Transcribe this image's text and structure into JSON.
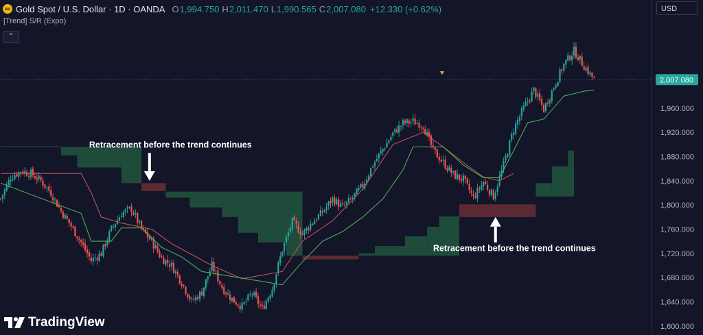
{
  "header": {
    "title": "Gold Spot / U.S. Dollar · 1D · OANDA",
    "o_key": "O",
    "o_val": "1,994.750",
    "h_key": "H",
    "h_val": "2,011.470",
    "l_key": "L",
    "l_val": "1,990.565",
    "c_key": "C",
    "c_val": "2,007.080",
    "change": "+12.330 (+0.62%)"
  },
  "indicator_label": "[Trend] S/R (Expo)",
  "currency": "USD",
  "logo_text": "TradingView",
  "colors": {
    "background": "#131529",
    "up": "#26a69a",
    "down": "#ef5350",
    "support_zone": "#1f4b3b",
    "resistance_zone": "#5c2a33",
    "trail_line": "#4caf50",
    "resist_line": "#c9505a",
    "price_tag": "#26a69a"
  },
  "chart_data": {
    "type": "candlestick",
    "price_axis": {
      "ylim": [
        1585,
        2098
      ],
      "ticks": [
        1600,
        1640,
        1680,
        1720,
        1760,
        1800,
        1840,
        1880,
        1920,
        1960
      ],
      "tick_labels": [
        "1,600.000",
        "1,640.000",
        "1,680.000",
        "1,720.000",
        "1,760.000",
        "1,800.000",
        "1,840.000",
        "1,880.000",
        "1,920.000",
        "1,960.000"
      ],
      "last_price": 2007.08,
      "last_price_label": "2,007.080"
    },
    "close_anchors": [
      [
        0,
        1810
      ],
      [
        5,
        1846
      ],
      [
        10,
        1856
      ],
      [
        15,
        1852
      ],
      [
        20,
        1840
      ],
      [
        25,
        1820
      ],
      [
        30,
        1790
      ],
      [
        35,
        1765
      ],
      [
        40,
        1738
      ],
      [
        45,
        1708
      ],
      [
        50,
        1720
      ],
      [
        55,
        1760
      ],
      [
        60,
        1786
      ],
      [
        65,
        1794
      ],
      [
        70,
        1760
      ],
      [
        75,
        1740
      ],
      [
        80,
        1712
      ],
      [
        85,
        1700
      ],
      [
        90,
        1672
      ],
      [
        95,
        1640
      ],
      [
        100,
        1656
      ],
      [
        105,
        1700
      ],
      [
        110,
        1664
      ],
      [
        115,
        1644
      ],
      [
        120,
        1632
      ],
      [
        125,
        1654
      ],
      [
        130,
        1628
      ],
      [
        135,
        1662
      ],
      [
        140,
        1726
      ],
      [
        145,
        1772
      ],
      [
        150,
        1752
      ],
      [
        155,
        1772
      ],
      [
        160,
        1788
      ],
      [
        165,
        1810
      ],
      [
        170,
        1796
      ],
      [
        175,
        1812
      ],
      [
        180,
        1832
      ],
      [
        185,
        1866
      ],
      [
        190,
        1892
      ],
      [
        195,
        1918
      ],
      [
        200,
        1935
      ],
      [
        205,
        1938
      ],
      [
        210,
        1932
      ],
      [
        215,
        1890
      ],
      [
        220,
        1870
      ],
      [
        225,
        1850
      ],
      [
        230,
        1842
      ],
      [
        235,
        1812
      ],
      [
        240,
        1838
      ],
      [
        245,
        1814
      ],
      [
        250,
        1866
      ],
      [
        255,
        1925
      ],
      [
        260,
        1960
      ],
      [
        265,
        1990
      ],
      [
        270,
        1958
      ],
      [
        275,
        1995
      ],
      [
        280,
        2032
      ],
      [
        285,
        2055
      ],
      [
        290,
        2030
      ],
      [
        295,
        2007
      ]
    ],
    "trail_line": [
      [
        0,
        1836
      ],
      [
        40,
        1786
      ],
      [
        45,
        1740
      ],
      [
        55,
        1740
      ],
      [
        60,
        1762
      ],
      [
        70,
        1762
      ],
      [
        75,
        1746
      ],
      [
        80,
        1730
      ],
      [
        90,
        1714
      ],
      [
        100,
        1690
      ],
      [
        140,
        1668
      ],
      [
        150,
        1706
      ],
      [
        160,
        1740
      ],
      [
        170,
        1756
      ],
      [
        180,
        1780
      ],
      [
        190,
        1810
      ],
      [
        200,
        1858
      ],
      [
        205,
        1896
      ],
      [
        220,
        1896
      ],
      [
        230,
        1866
      ],
      [
        240,
        1845
      ],
      [
        248,
        1845
      ],
      [
        255,
        1890
      ],
      [
        262,
        1936
      ],
      [
        270,
        1942
      ],
      [
        280,
        1980
      ],
      [
        290,
        1988
      ],
      [
        295,
        1990
      ]
    ],
    "resist_line": [
      [
        0,
        1852
      ],
      [
        40,
        1852
      ],
      [
        45,
        1820
      ],
      [
        50,
        1780
      ],
      [
        60,
        1770
      ],
      [
        75,
        1760
      ],
      [
        85,
        1736
      ],
      [
        105,
        1700
      ],
      [
        120,
        1678
      ],
      [
        140,
        1690
      ],
      [
        150,
        1740
      ],
      [
        165,
        1774
      ],
      [
        180,
        1826
      ],
      [
        195,
        1900
      ],
      [
        210,
        1920
      ],
      [
        220,
        1896
      ],
      [
        230,
        1870
      ],
      [
        240,
        1846
      ],
      [
        248,
        1840
      ],
      [
        255,
        1852
      ]
    ],
    "support_zones": [
      {
        "x": [
          0,
          30
        ],
        "top": 1897,
        "bottom": 1897
      },
      {
        "x": [
          30,
          38
        ],
        "top": 1896,
        "bottom": 1882
      },
      {
        "x": [
          38,
          60
        ],
        "top": 1896,
        "bottom": 1862
      },
      {
        "x": [
          60,
          70
        ],
        "top": 1896,
        "bottom": 1836
      },
      {
        "x": [
          82,
          94
        ],
        "top": 1822,
        "bottom": 1812
      },
      {
        "x": [
          94,
          110
        ],
        "top": 1822,
        "bottom": 1796
      },
      {
        "x": [
          110,
          118
        ],
        "top": 1822,
        "bottom": 1780
      },
      {
        "x": [
          118,
          128
        ],
        "top": 1822,
        "bottom": 1754
      },
      {
        "x": [
          128,
          142
        ],
        "top": 1822,
        "bottom": 1738
      },
      {
        "x": [
          142,
          150
        ],
        "top": 1822,
        "bottom": 1716
      },
      {
        "x": [
          178,
          186
        ],
        "top": 1720,
        "bottom": 1716
      },
      {
        "x": [
          186,
          201
        ],
        "top": 1732,
        "bottom": 1716
      },
      {
        "x": [
          201,
          212
        ],
        "top": 1748,
        "bottom": 1716
      },
      {
        "x": [
          212,
          218
        ],
        "top": 1764,
        "bottom": 1716
      },
      {
        "x": [
          218,
          228
        ],
        "top": 1781,
        "bottom": 1716
      },
      {
        "x": [
          266,
          274
        ],
        "top": 1836,
        "bottom": 1814
      },
      {
        "x": [
          274,
          282
        ],
        "top": 1864,
        "bottom": 1814
      },
      {
        "x": [
          282,
          285
        ],
        "top": 1890,
        "bottom": 1814
      }
    ],
    "resistance_zones": [
      {
        "x": [
          70,
          82
        ],
        "top": 1836,
        "bottom": 1823
      },
      {
        "x": [
          150,
          178
        ],
        "top": 1716,
        "bottom": 1710
      },
      {
        "x": [
          228,
          266
        ],
        "top": 1801,
        "bottom": 1780
      }
    ],
    "annotations": [
      {
        "text": "Retracement before the trend continues",
        "arrow_x": 74,
        "arrow_from": 1886,
        "arrow_to": 1840,
        "text_price": 1895,
        "text_x": 44
      },
      {
        "text": "Retracement before the trend continues",
        "arrow_x": 246,
        "arrow_from": 1738,
        "arrow_to": 1780,
        "text_price": 1724,
        "text_x": 215
      }
    ],
    "bar_count": 296
  }
}
